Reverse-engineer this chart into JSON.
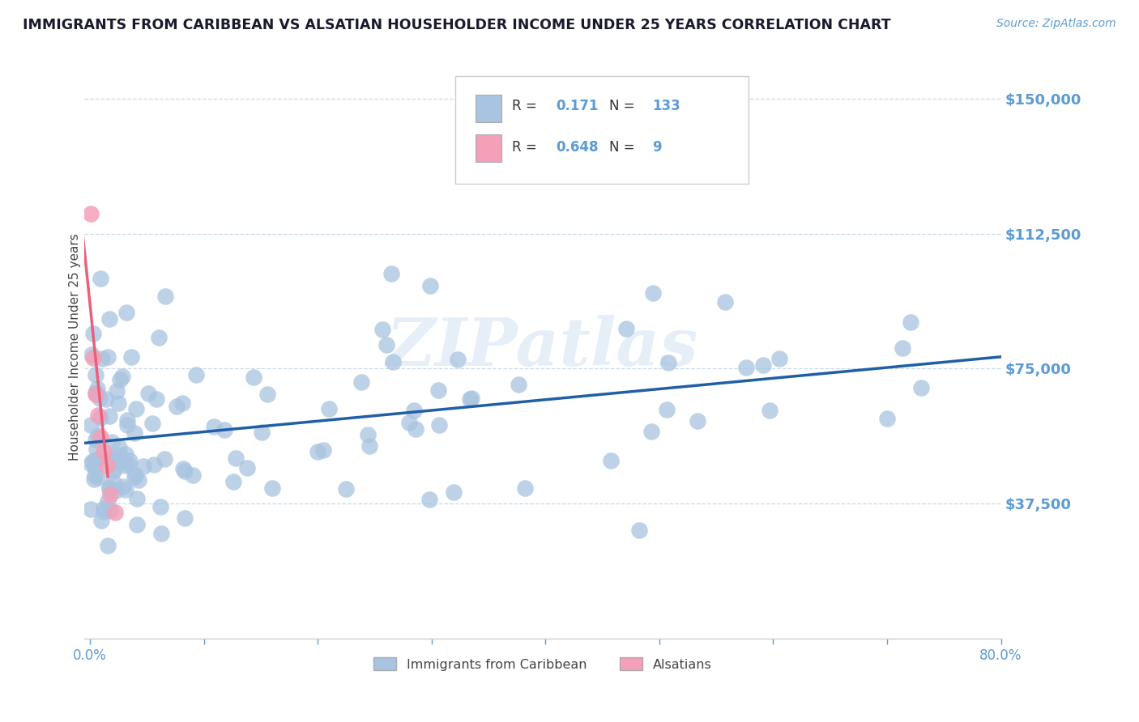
{
  "title": "IMMIGRANTS FROM CARIBBEAN VS ALSATIAN HOUSEHOLDER INCOME UNDER 25 YEARS CORRELATION CHART",
  "source_text": "Source: ZipAtlas.com",
  "ylabel": "Householder Income Under 25 years",
  "watermark": "ZIPatlas",
  "xlim": [
    -0.005,
    0.8
  ],
  "ylim": [
    0,
    162000
  ],
  "yticks": [
    37500,
    75000,
    112500,
    150000
  ],
  "ytick_labels": [
    "$37,500",
    "$75,000",
    "$112,500",
    "$150,000"
  ],
  "xticks": [
    0.0,
    0.1,
    0.2,
    0.3,
    0.4,
    0.5,
    0.6,
    0.7,
    0.8
  ],
  "xtick_labels": [
    "0.0%",
    "",
    "",
    "",
    "",
    "",
    "",
    "",
    "80.0%"
  ],
  "axis_color": "#5b9bd5",
  "grid_color": "#c8d8e8",
  "blue_dot_color": "#a8c4e0",
  "pink_dot_color": "#f4a0b8",
  "regression_blue": "#1f5fa6",
  "regression_pink": "#e8607a",
  "R_caribbean": 0.171,
  "N_caribbean": 133,
  "R_alsatian": 0.648,
  "N_alsatian": 9,
  "legend_label_caribbean": "Immigrants from Caribbean",
  "legend_label_alsatian": "Alsatians"
}
